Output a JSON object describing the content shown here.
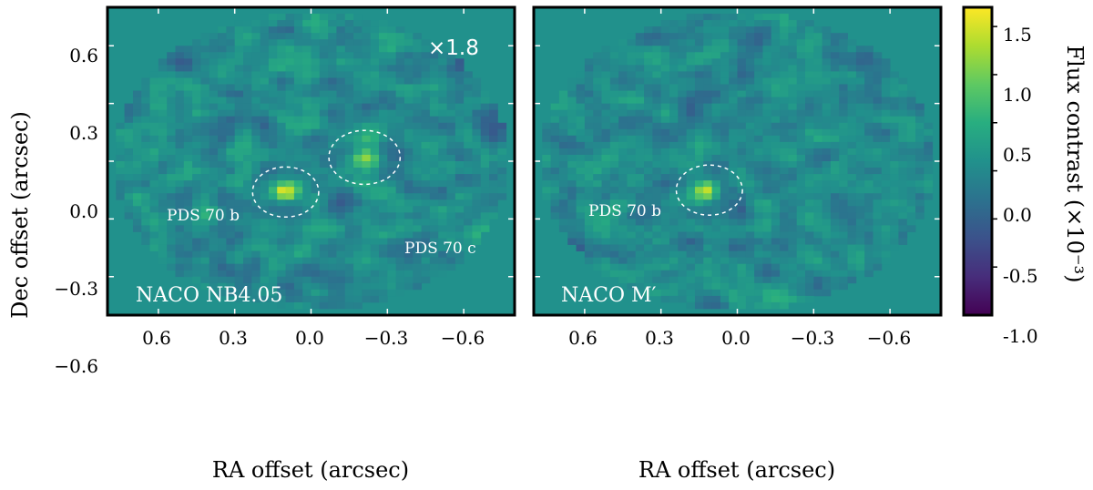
{
  "chart_data": {
    "type": "heatmap",
    "colormap": "viridis",
    "shared": {
      "xlabel": "RA offset (arcsec)",
      "ylabel": "Dec offset (arcsec)",
      "xlim": [
        0.8,
        -0.8
      ],
      "ylim": [
        -0.8,
        0.8
      ],
      "xticks": [
        0.6,
        0.3,
        0.0,
        -0.3,
        -0.6
      ],
      "xtick_labels": [
        "0.6",
        "0.3",
        "0.0",
        "−0.3",
        "−0.6"
      ],
      "yticks": [
        0.6,
        0.3,
        0.0,
        -0.3,
        -0.6
      ],
      "ytick_labels": [
        "0.6",
        "0.3",
        "0.0",
        "−0.3",
        "−0.6"
      ]
    },
    "panels": [
      {
        "label": "NACO NB4.05",
        "scale_note": "×1.8",
        "sources": [
          {
            "name": "PDS 70 b",
            "ra": 0.1,
            "dec": -0.16,
            "peak": 1.6
          },
          {
            "name": "PDS 70 c",
            "ra": -0.21,
            "dec": 0.02,
            "peak": 1.0
          }
        ],
        "circles": [
          {
            "ra": 0.1,
            "dec": -0.16,
            "r": 0.13
          },
          {
            "ra": -0.21,
            "dec": 0.02,
            "r": 0.14
          }
        ]
      },
      {
        "label": "NACO M′",
        "sources": [
          {
            "name": "PDS 70 b",
            "ra": 0.12,
            "dec": -0.15,
            "peak": 1.65
          }
        ],
        "circles": [
          {
            "ra": 0.11,
            "dec": -0.15,
            "r": 0.13
          }
        ]
      }
    ],
    "colorbar": {
      "label": "Flux contrast (×10⁻³)",
      "range": [
        -1.5,
        1.7
      ],
      "ticks": [
        1.5,
        1.0,
        0.5,
        0.0,
        -0.5,
        -1.0
      ],
      "tick_labels": [
        "1.5",
        "1.0",
        "0.5",
        "0.0",
        "-0.5",
        "-1.0"
      ]
    }
  }
}
